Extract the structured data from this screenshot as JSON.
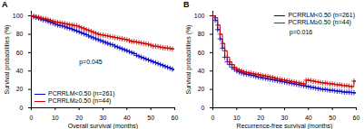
{
  "chart_data": [
    {
      "type": "step",
      "title": "A",
      "x_label": "Overall survival (months)",
      "y_label": "Survival probabilities (%)",
      "xlim": [
        0,
        60
      ],
      "ylim": [
        0,
        105
      ],
      "xticks": [
        0,
        10,
        20,
        30,
        40,
        50,
        60
      ],
      "yticks": [
        0,
        20,
        40,
        60,
        80,
        100
      ],
      "legend": "lower left",
      "annotations": [
        {
          "text": "p=0.045",
          "x": 20,
          "y": 52
        }
      ],
      "x": [
        0,
        1,
        2,
        3,
        4,
        5,
        6,
        7,
        8,
        9,
        10,
        11,
        12,
        13,
        14,
        15,
        16,
        17,
        18,
        19,
        20,
        21,
        22,
        23,
        24,
        25,
        26,
        27,
        28,
        29,
        30,
        31,
        32,
        33,
        34,
        35,
        36,
        37,
        38,
        39,
        40,
        41,
        42,
        43,
        44,
        45,
        46,
        47,
        48,
        49,
        50,
        51,
        52,
        53,
        54,
        55,
        56,
        57,
        58,
        59,
        60
      ],
      "series": [
        {
          "name": "PCRRLM<0.50 (n=261)",
          "color": "#0000cc",
          "marker": "plus",
          "values": [
            100,
            99,
            98.5,
            97.5,
            96.5,
            95.5,
            95,
            94,
            93,
            92,
            91,
            90,
            89.5,
            89,
            88,
            87,
            86.5,
            85.5,
            84.5,
            83.5,
            82.5,
            81.5,
            80.5,
            79.5,
            78,
            77,
            76,
            75,
            74,
            73,
            72,
            71,
            70,
            69,
            68.5,
            67,
            66,
            65,
            64,
            63,
            62,
            61,
            60,
            59,
            57,
            56,
            55,
            54,
            53,
            52,
            51,
            50,
            49,
            48,
            47,
            46,
            45,
            44,
            43,
            42,
            41
          ]
        },
        {
          "name": "PCRRLM≥0.50 (n=44)",
          "color": "#cc0000",
          "marker": "plus",
          "values": [
            100,
            99.5,
            99,
            98.5,
            97.5,
            97,
            96.5,
            96,
            95,
            94,
            93.5,
            93,
            92.5,
            92,
            91.5,
            91,
            90.5,
            90,
            89.5,
            89,
            88,
            87,
            86,
            85,
            84,
            83,
            82,
            81,
            80,
            79.5,
            79,
            78.5,
            78,
            77.5,
            77,
            76.5,
            76,
            75.5,
            75,
            74.5,
            74,
            73,
            72,
            72,
            71.5,
            71,
            70.5,
            70,
            69.5,
            69,
            68,
            67,
            67,
            66.5,
            66,
            65.5,
            65,
            65,
            64.5,
            64,
            64
          ]
        }
      ]
    },
    {
      "type": "step",
      "title": "B",
      "x_label": "Recurrence-free survival (months)",
      "y_label": "Survival probabilities (%)",
      "xlim": [
        0,
        60
      ],
      "ylim": [
        0,
        105
      ],
      "xticks": [
        0,
        10,
        20,
        30,
        40,
        50,
        60
      ],
      "yticks": [
        0,
        20,
        40,
        60,
        80,
        100
      ],
      "legend": "upper right",
      "annotations": [
        {
          "text": "p=0.016",
          "x": 32,
          "y": 85
        }
      ],
      "x": [
        0,
        1,
        2,
        3,
        4,
        5,
        6,
        7,
        8,
        9,
        10,
        11,
        12,
        13,
        14,
        15,
        16,
        17,
        18,
        19,
        20,
        21,
        22,
        23,
        24,
        25,
        26,
        27,
        28,
        29,
        30,
        31,
        32,
        33,
        34,
        35,
        36,
        37,
        38,
        39,
        40,
        41,
        42,
        43,
        44,
        45,
        46,
        47,
        48,
        49,
        50,
        51,
        52,
        53,
        54,
        55,
        56,
        57,
        58,
        59,
        60
      ],
      "series": [
        {
          "name": "PCRRLM<0.50 (n=261)",
          "color": "#0000cc",
          "marker": "plus",
          "values": [
            100,
            95,
            85,
            75,
            65,
            55,
            50,
            47,
            44,
            42,
            40,
            39,
            38,
            37,
            36.5,
            36,
            35.5,
            35,
            34,
            33.5,
            33,
            32.5,
            32,
            31.5,
            31,
            30.5,
            30,
            29.5,
            29,
            28.5,
            28,
            27.5,
            27,
            26.5,
            26,
            25.5,
            25,
            24.5,
            24,
            23.5,
            23,
            22.5,
            22,
            21.5,
            21,
            20.5,
            20,
            20,
            19.5,
            19,
            19,
            18.5,
            18,
            18,
            17.5,
            17,
            17,
            17,
            16.5,
            16.5,
            16
          ]
        },
        {
          "name": "PCRRLM≥0.50 (n=44)",
          "color": "#cc0000",
          "marker": "plus",
          "values": [
            100,
            98,
            90,
            80,
            70,
            62,
            55,
            50,
            47,
            44,
            42,
            41,
            40,
            39,
            38.5,
            38,
            37.5,
            37,
            36.5,
            36,
            35.5,
            35,
            34.5,
            34,
            33.5,
            33,
            32,
            31.5,
            31,
            30.5,
            30,
            29.5,
            29,
            28.5,
            28,
            27.5,
            27,
            26.5,
            26,
            30,
            30,
            29.5,
            29,
            28.5,
            28,
            27.5,
            27,
            27,
            26.5,
            26,
            26,
            25.5,
            25,
            25,
            24.5,
            24,
            24,
            23.5,
            23,
            29,
            29
          ]
        }
      ]
    }
  ]
}
